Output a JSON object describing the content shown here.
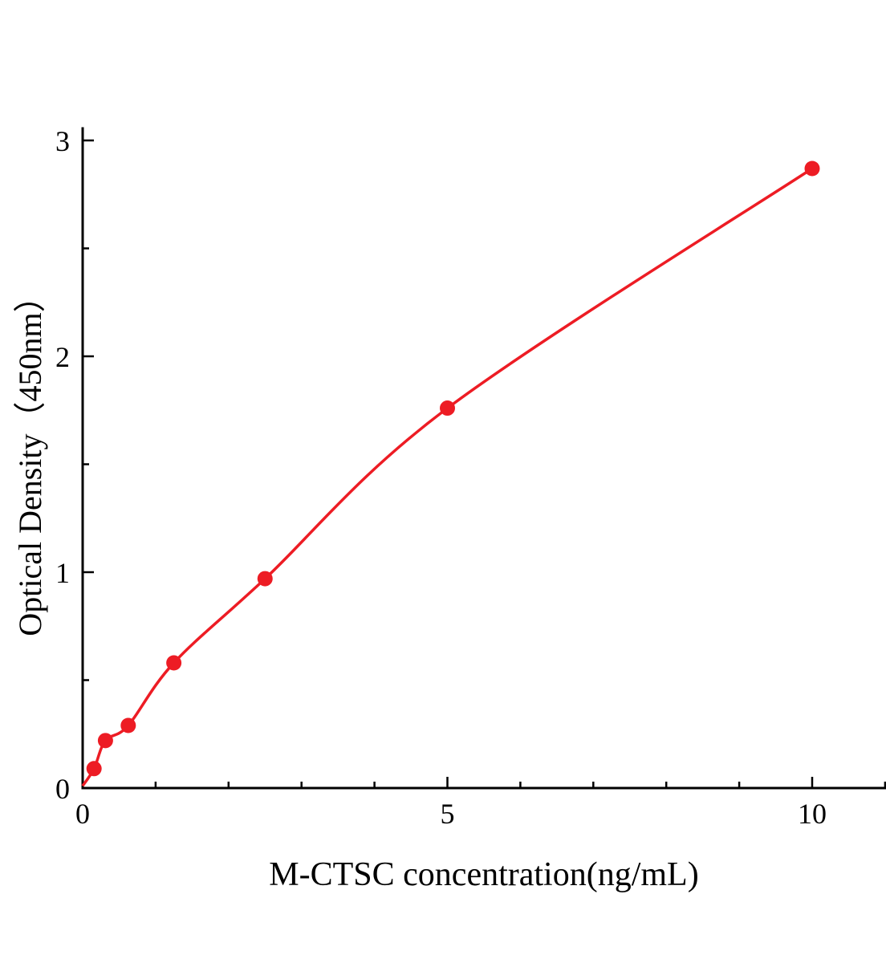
{
  "figure": {
    "background": "#ffffff"
  },
  "chart_data": {
    "type": "line",
    "title": "",
    "xlabel": "M-CTSC concentration(ng/mL)",
    "ylabel": "Optical Density（450nm）",
    "line_color": "#ed1c24",
    "marker_color": "#ed1c24",
    "axis_color": "#000000",
    "x": [
      0.156,
      0.3125,
      0.625,
      1.25,
      2.5,
      5,
      10
    ],
    "y": [
      0.09,
      0.22,
      0.29,
      0.58,
      0.97,
      1.76,
      2.87
    ],
    "curve_origin": {
      "x": 0,
      "y": 0.01
    },
    "xlim": [
      0,
      11
    ],
    "ylim": [
      0,
      3
    ],
    "x_major_ticks": [
      0,
      5,
      10
    ],
    "x_minor_ticks": [
      1,
      2,
      3,
      4,
      6,
      7,
      8,
      9,
      11
    ],
    "y_major_ticks": [
      0,
      1,
      2,
      3
    ],
    "y_minor_ticks": [
      0.5,
      1.5,
      2.5
    ],
    "grid": false,
    "legend": null,
    "marker_shape": "circle"
  }
}
